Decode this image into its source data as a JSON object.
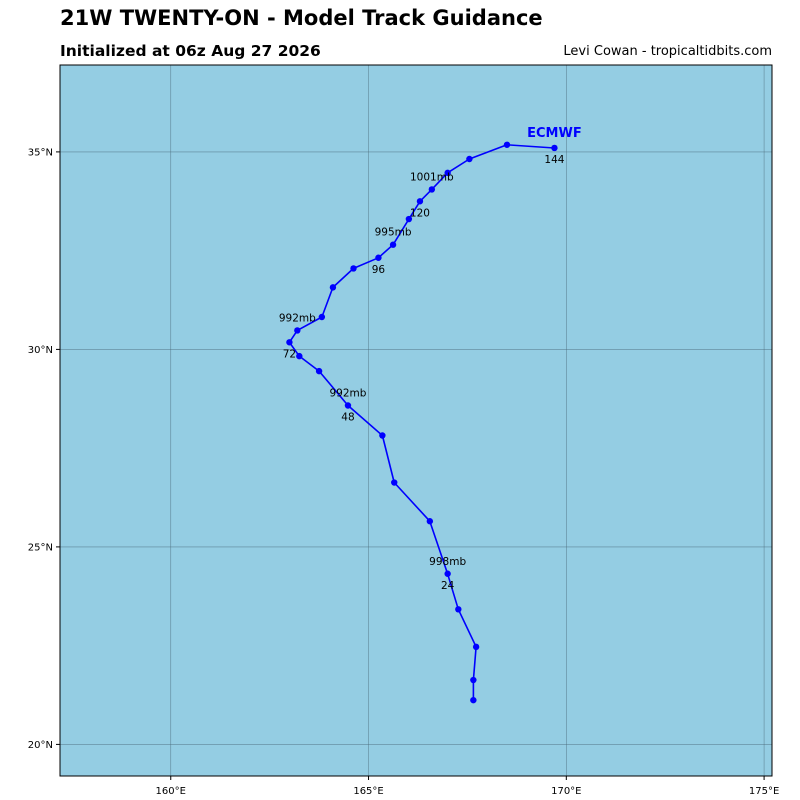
{
  "header": {
    "title": "21W TWENTY-ON - Model Track Guidance",
    "subtitle": "Initialized at 06z Aug 27 2026",
    "credit": "Levi Cowan - tropicaltidbits.com"
  },
  "colors": {
    "ocean": "#94cde3",
    "track": "#0000ff",
    "grid": "#4a6a78"
  },
  "chart_data": {
    "type": "line",
    "title": "21W TWENTY-ON - Model Track Guidance",
    "subtitle": "Initialized at 06z Aug 27 2026",
    "xlim": [
      157.2,
      175.2
    ],
    "ylim": [
      19.2,
      37.2
    ],
    "grid": true,
    "x_ticks": [
      {
        "value": 160,
        "label": "160°E"
      },
      {
        "value": 165,
        "label": "165°E"
      },
      {
        "value": 170,
        "label": "170°E"
      },
      {
        "value": 175,
        "label": "175°E"
      }
    ],
    "y_ticks": [
      {
        "value": 20,
        "label": "20°N"
      },
      {
        "value": 25,
        "label": "25°N"
      },
      {
        "value": 30,
        "label": "30°N"
      },
      {
        "value": 35,
        "label": "35°N"
      }
    ],
    "series": [
      {
        "name": "ECMWF",
        "color": "#0000ff",
        "points": [
          {
            "lon": 167.65,
            "lat": 21.12
          },
          {
            "lon": 167.65,
            "lat": 21.63
          },
          {
            "lon": 167.72,
            "lat": 22.47
          },
          {
            "lon": 167.27,
            "lat": 23.42
          },
          {
            "lon": 167.0,
            "lat": 24.32
          },
          {
            "lon": 166.55,
            "lat": 25.65
          },
          {
            "lon": 165.65,
            "lat": 26.63
          },
          {
            "lon": 165.35,
            "lat": 27.82
          },
          {
            "lon": 164.48,
            "lat": 28.58
          },
          {
            "lon": 163.75,
            "lat": 29.45
          },
          {
            "lon": 163.25,
            "lat": 29.83
          },
          {
            "lon": 163.0,
            "lat": 30.18
          },
          {
            "lon": 163.2,
            "lat": 30.48
          },
          {
            "lon": 163.82,
            "lat": 30.82
          },
          {
            "lon": 164.1,
            "lat": 31.57
          },
          {
            "lon": 164.62,
            "lat": 32.05
          },
          {
            "lon": 165.25,
            "lat": 32.32
          },
          {
            "lon": 165.62,
            "lat": 32.65
          },
          {
            "lon": 166.02,
            "lat": 33.3
          },
          {
            "lon": 166.3,
            "lat": 33.75
          },
          {
            "lon": 166.6,
            "lat": 34.05
          },
          {
            "lon": 167.0,
            "lat": 34.47
          },
          {
            "lon": 167.55,
            "lat": 34.82
          },
          {
            "lon": 168.5,
            "lat": 35.18
          },
          {
            "lon": 169.7,
            "lat": 35.1
          }
        ],
        "hour_labels": [
          {
            "text": "24",
            "lon": 167.0,
            "lat": 24.32
          },
          {
            "text": "48",
            "lon": 164.48,
            "lat": 28.58
          },
          {
            "text": "72",
            "lon": 163.0,
            "lat": 30.18
          },
          {
            "text": "96",
            "lon": 165.25,
            "lat": 32.32
          },
          {
            "text": "120",
            "lon": 166.3,
            "lat": 33.75
          },
          {
            "text": "144",
            "lon": 169.7,
            "lat": 35.1
          }
        ],
        "pressure_labels": [
          {
            "text": "998mb",
            "lon": 167.0,
            "lat": 24.32
          },
          {
            "text": "992mb",
            "lon": 164.48,
            "lat": 28.58
          },
          {
            "text": "992mb",
            "lon": 163.2,
            "lat": 30.48
          },
          {
            "text": "995mb",
            "lon": 165.62,
            "lat": 32.65
          },
          {
            "text": "1001mb",
            "lon": 166.6,
            "lat": 34.05
          }
        ],
        "name_label": {
          "lon": 169.7,
          "lat": 35.1
        }
      }
    ]
  }
}
